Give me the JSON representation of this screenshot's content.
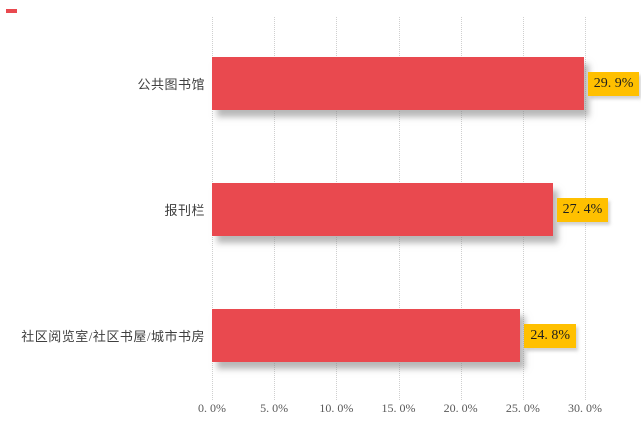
{
  "chart_data": {
    "type": "bar",
    "orientation": "horizontal",
    "title": "",
    "categories": [
      "公共图书馆",
      "报刊栏",
      "社区阅览室/社区书屋/城市书房"
    ],
    "values": [
      29.9,
      27.4,
      24.8
    ],
    "data_labels": [
      "29. 9%",
      "27. 4%",
      "24. 8%"
    ],
    "x_axis": {
      "range": [
        0,
        30
      ],
      "tick_values": [
        0,
        5,
        10,
        15,
        20,
        25,
        30
      ],
      "tick_labels": [
        "0. 0%",
        "5. 0%",
        "10. 0%",
        "15. 0%",
        "20. 0%",
        "25. 0%",
        "30. 0%"
      ],
      "unit": "%"
    },
    "grid": {
      "vertical": true,
      "horizontal": false
    },
    "legend": "none",
    "colors": {
      "bar": "#E9494F",
      "data_label_bg": "#FFC000",
      "data_label_text": "#1F1F1F",
      "category_label_text": "#3F3F3F",
      "tick_label_text": "#595959",
      "gridline": "#CFCFCF",
      "background": "#FFFFFF",
      "corner_mark": "#E9494F"
    }
  }
}
